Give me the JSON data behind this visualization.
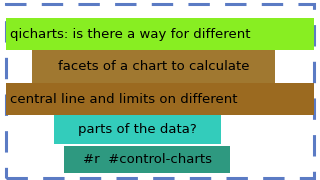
{
  "bg_color": "#ffffff",
  "border_color": "#5b7bc4",
  "lines": [
    {
      "text": "qicharts: is there a way for different",
      "bg": "#88ee22",
      "xf": 0.02,
      "yf": 0.72,
      "wf": 0.96,
      "hf": 0.18,
      "fontsize": 9.5,
      "ha": "left",
      "bold": false
    },
    {
      "text": "facets of a chart to calculate",
      "bg": "#a07830",
      "xf": 0.1,
      "yf": 0.54,
      "wf": 0.76,
      "hf": 0.18,
      "fontsize": 9.5,
      "ha": "center",
      "bold": false
    },
    {
      "text": "central line and limits on different",
      "bg": "#9b6a20",
      "xf": 0.02,
      "yf": 0.36,
      "wf": 0.96,
      "hf": 0.18,
      "fontsize": 9.5,
      "ha": "left",
      "bold": false
    },
    {
      "text": "parts of the data?",
      "bg": "#33ccbb",
      "xf": 0.17,
      "yf": 0.2,
      "wf": 0.52,
      "hf": 0.16,
      "fontsize": 9.5,
      "ha": "center",
      "bold": false
    },
    {
      "text": "#r  #control-charts",
      "bg": "#2e9980",
      "xf": 0.2,
      "yf": 0.04,
      "wf": 0.52,
      "hf": 0.15,
      "fontsize": 9.5,
      "ha": "center",
      "bold": false
    }
  ]
}
